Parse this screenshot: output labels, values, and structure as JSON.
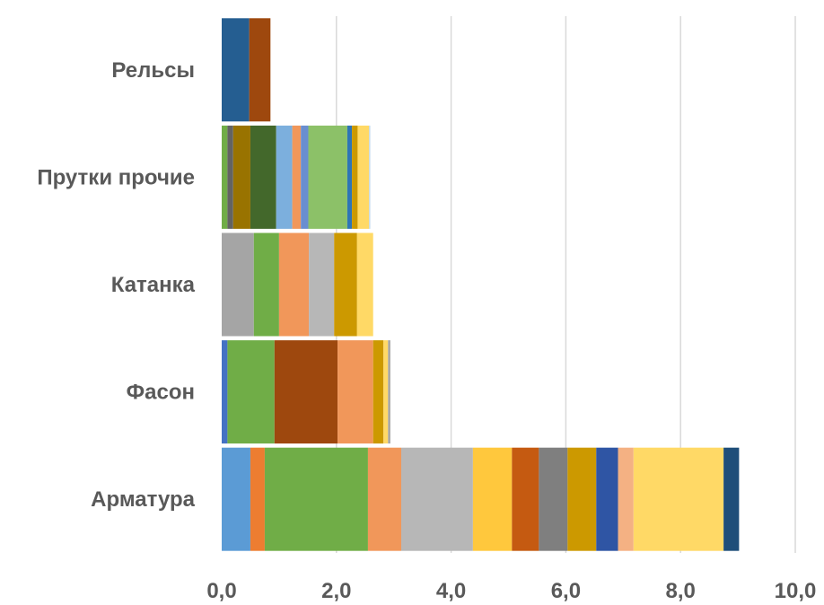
{
  "chart_data": {
    "type": "bar",
    "orientation": "horizontal",
    "stacked": true,
    "categories": [
      "Рельсы",
      "Прутки прочие",
      "Катанка",
      "Фасон",
      "Арматура"
    ],
    "xlim": [
      0,
      10
    ],
    "x_ticks": [
      "0,0",
      "2,0",
      "4,0",
      "6,0",
      "8,0",
      "10,0"
    ],
    "grid": "vertical",
    "legend": "none",
    "bars": [
      {
        "category": "Рельсы",
        "segments": [
          {
            "value": 0.48,
            "color": "#255E91"
          },
          {
            "value": 0.37,
            "color": "#9E480E"
          }
        ]
      },
      {
        "category": "Прутки прочие",
        "segments": [
          {
            "value": 0.1,
            "color": "#70AD47"
          },
          {
            "value": 0.1,
            "color": "#636363"
          },
          {
            "value": 0.3,
            "color": "#997300"
          },
          {
            "value": 0.45,
            "color": "#43682B"
          },
          {
            "value": 0.28,
            "color": "#7CAFDD"
          },
          {
            "value": 0.15,
            "color": "#F1975A"
          },
          {
            "value": 0.13,
            "color": "#698ED0"
          },
          {
            "value": 0.68,
            "color": "#8CC168"
          },
          {
            "value": 0.08,
            "color": "#2E75B6"
          },
          {
            "value": 0.1,
            "color": "#CC9900"
          },
          {
            "value": 0.2,
            "color": "#FFD966"
          },
          {
            "value": 0.02,
            "color": "#BDD7EE"
          }
        ]
      },
      {
        "category": "Катанка",
        "segments": [
          {
            "value": 0.56,
            "color": "#A5A5A5"
          },
          {
            "value": 0.44,
            "color": "#70AD47"
          },
          {
            "value": 0.52,
            "color": "#F1975A"
          },
          {
            "value": 0.44,
            "color": "#B7B7B7"
          },
          {
            "value": 0.4,
            "color": "#CC9900"
          },
          {
            "value": 0.28,
            "color": "#FFD966"
          }
        ]
      },
      {
        "category": "Фасон",
        "segments": [
          {
            "value": 0.1,
            "color": "#4472C4"
          },
          {
            "value": 0.82,
            "color": "#70AD47"
          },
          {
            "value": 1.1,
            "color": "#9E480E"
          },
          {
            "value": 0.62,
            "color": "#F1975A"
          },
          {
            "value": 0.18,
            "color": "#CC9900"
          },
          {
            "value": 0.08,
            "color": "#FFD966"
          },
          {
            "value": 0.04,
            "color": "#A5A5A5"
          }
        ]
      },
      {
        "category": "Арматура",
        "segments": [
          {
            "value": 0.5,
            "color": "#5B9BD5"
          },
          {
            "value": 0.25,
            "color": "#ED7D31"
          },
          {
            "value": 1.8,
            "color": "#70AD47"
          },
          {
            "value": 0.58,
            "color": "#F1975A"
          },
          {
            "value": 1.25,
            "color": "#B7B7B7"
          },
          {
            "value": 0.68,
            "color": "#FFC83D"
          },
          {
            "value": 0.47,
            "color": "#C55A11"
          },
          {
            "value": 0.5,
            "color": "#7F7F7F"
          },
          {
            "value": 0.5,
            "color": "#CC9900"
          },
          {
            "value": 0.38,
            "color": "#2F55A4"
          },
          {
            "value": 0.27,
            "color": "#F4B183"
          },
          {
            "value": 1.57,
            "color": "#FFD966"
          },
          {
            "value": 0.27,
            "color": "#1F4E79"
          }
        ]
      }
    ]
  }
}
